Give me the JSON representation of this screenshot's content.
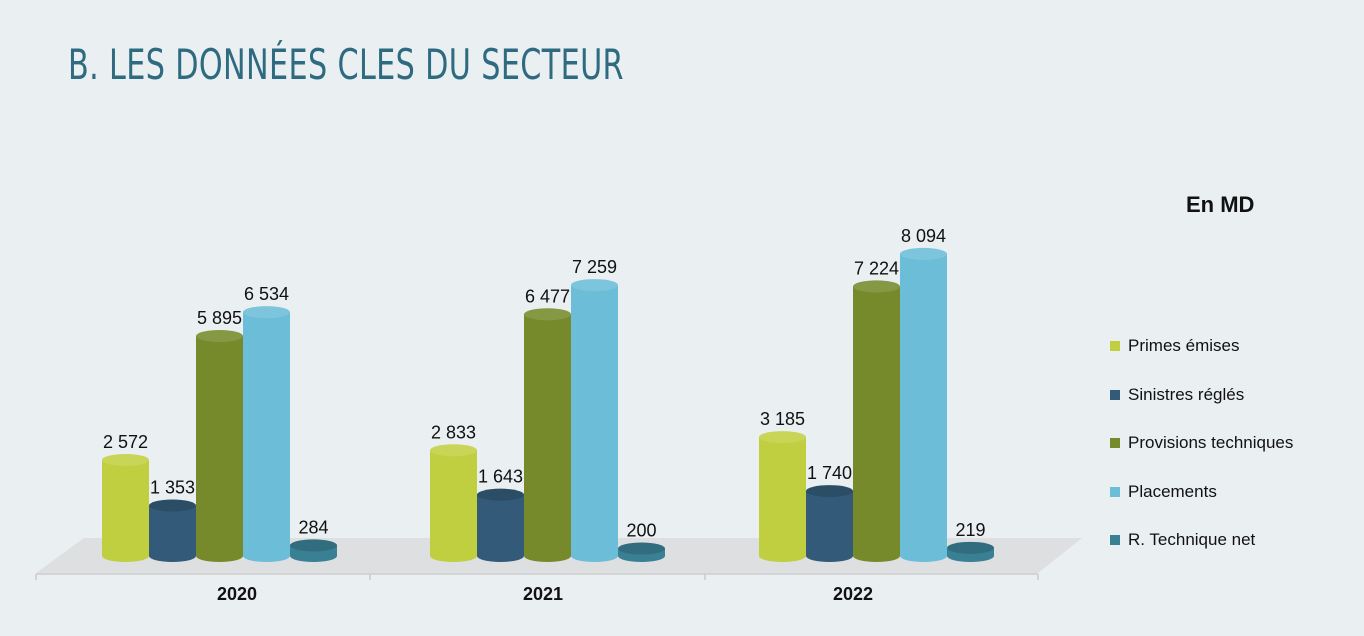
{
  "page": {
    "title": "B. LES DONNÉES CLES DU SECTEUR",
    "unit": "En MD"
  },
  "chart_data": {
    "type": "bar",
    "categories": [
      "2020",
      "2021",
      "2022"
    ],
    "series": [
      {
        "name": "Primes émises",
        "color": "#c0cf3f",
        "values": [
          2572,
          2833,
          3185
        ],
        "labels": [
          "2 572",
          "2 833",
          "3 185"
        ]
      },
      {
        "name": "Sinistres réglés",
        "color": "#335a78",
        "values": [
          1353,
          1643,
          1740
        ],
        "labels": [
          "1 353",
          "1 643",
          "1 740"
        ]
      },
      {
        "name": "Provisions techniques",
        "color": "#778a2b",
        "values": [
          5895,
          6477,
          7224
        ],
        "labels": [
          "5 895",
          "6 477",
          "7 224"
        ]
      },
      {
        "name": "Placements",
        "color": "#6bbdd8",
        "values": [
          6534,
          7259,
          8094
        ],
        "labels": [
          "6 534",
          "7 259",
          "8 094"
        ]
      },
      {
        "name": "R. Technique net",
        "color": "#3a8094",
        "values": [
          284,
          200,
          219
        ],
        "labels": [
          "284",
          "200",
          "219"
        ]
      }
    ],
    "legend_position": "right",
    "grid": false,
    "style": "3d-cylinder"
  }
}
